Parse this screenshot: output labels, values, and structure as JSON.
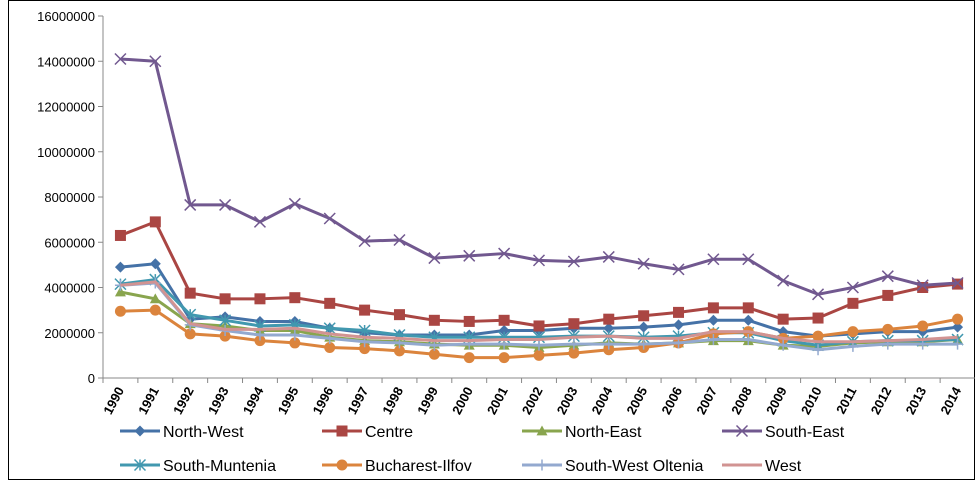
{
  "chart_data": {
    "type": "line",
    "categories": [
      "1990",
      "1991",
      "1992",
      "1993",
      "1994",
      "1995",
      "1996",
      "1997",
      "1998",
      "1999",
      "2000",
      "2001",
      "2002",
      "2003",
      "2004",
      "2005",
      "2006",
      "2007",
      "2008",
      "2009",
      "2010",
      "2011",
      "2012",
      "2013",
      "2014"
    ],
    "ylim": [
      0,
      16000000
    ],
    "yticks": [
      0,
      2000000,
      4000000,
      6000000,
      8000000,
      10000000,
      12000000,
      14000000,
      16000000
    ],
    "grid": false,
    "legend": "bottom",
    "series": [
      {
        "name": "North-West",
        "color": "#4572a7",
        "marker": "diamond",
        "values": [
          4900000,
          5050000,
          2600000,
          2700000,
          2500000,
          2500000,
          2200000,
          2000000,
          1900000,
          1900000,
          1900000,
          2100000,
          2100000,
          2200000,
          2200000,
          2250000,
          2350000,
          2550000,
          2550000,
          2050000,
          1850000,
          1950000,
          2050000,
          2050000,
          2250000
        ]
      },
      {
        "name": "Centre",
        "color": "#aa4643",
        "marker": "square",
        "values": [
          6300000,
          6900000,
          3750000,
          3500000,
          3500000,
          3550000,
          3300000,
          3000000,
          2800000,
          2550000,
          2500000,
          2550000,
          2300000,
          2400000,
          2600000,
          2750000,
          2900000,
          3100000,
          3100000,
          2600000,
          2650000,
          3300000,
          3650000,
          4000000,
          4150000
        ]
      },
      {
        "name": "North-East",
        "color": "#89a54e",
        "marker": "triangle",
        "values": [
          3800000,
          3500000,
          2400000,
          2300000,
          2100000,
          2100000,
          1800000,
          1650000,
          1600000,
          1500000,
          1450000,
          1450000,
          1350000,
          1450000,
          1550000,
          1500000,
          1550000,
          1650000,
          1650000,
          1450000,
          1400000,
          1550000,
          1600000,
          1600000,
          1700000
        ]
      },
      {
        "name": "South-East",
        "color": "#71588f",
        "marker": "x",
        "values": [
          14100000,
          14000000,
          7650000,
          7650000,
          6900000,
          7700000,
          7050000,
          6050000,
          6100000,
          5300000,
          5400000,
          5500000,
          5200000,
          5150000,
          5350000,
          5050000,
          4800000,
          5250000,
          5250000,
          4300000,
          3700000,
          4000000,
          4500000,
          4100000,
          4200000
        ]
      },
      {
        "name": "South-Muntenia",
        "color": "#4198af",
        "marker": "star",
        "values": [
          4150000,
          4350000,
          2800000,
          2550000,
          2300000,
          2350000,
          2200000,
          2100000,
          1900000,
          1800000,
          1800000,
          1800000,
          1800000,
          1850000,
          1850000,
          1800000,
          1850000,
          2000000,
          2000000,
          1650000,
          1450000,
          1600000,
          1650000,
          1650000,
          1700000
        ]
      },
      {
        "name": "Bucharest-Ilfov",
        "color": "#db843d",
        "marker": "circle",
        "values": [
          2950000,
          3000000,
          1950000,
          1850000,
          1650000,
          1550000,
          1350000,
          1300000,
          1200000,
          1050000,
          900000,
          900000,
          1000000,
          1100000,
          1250000,
          1350000,
          1550000,
          1950000,
          2050000,
          1750000,
          1850000,
          2050000,
          2150000,
          2300000,
          2600000
        ]
      },
      {
        "name": "South-West Oltenia",
        "color": "#93a9cf",
        "marker": "plus",
        "values": [
          4100000,
          4200000,
          2350000,
          2100000,
          1900000,
          1900000,
          1750000,
          1600000,
          1550000,
          1450000,
          1500000,
          1500000,
          1450000,
          1500000,
          1500000,
          1500000,
          1550000,
          1700000,
          1700000,
          1450000,
          1250000,
          1400000,
          1500000,
          1500000,
          1500000
        ]
      },
      {
        "name": "West",
        "color": "#d19392",
        "marker": "none",
        "values": [
          4100000,
          4250000,
          2400000,
          2150000,
          2150000,
          2200000,
          1950000,
          1800000,
          1750000,
          1650000,
          1650000,
          1700000,
          1700000,
          1800000,
          1850000,
          1750000,
          1750000,
          2050000,
          2050000,
          1750000,
          1600000,
          1600000,
          1650000,
          1700000,
          1800000
        ]
      }
    ]
  }
}
